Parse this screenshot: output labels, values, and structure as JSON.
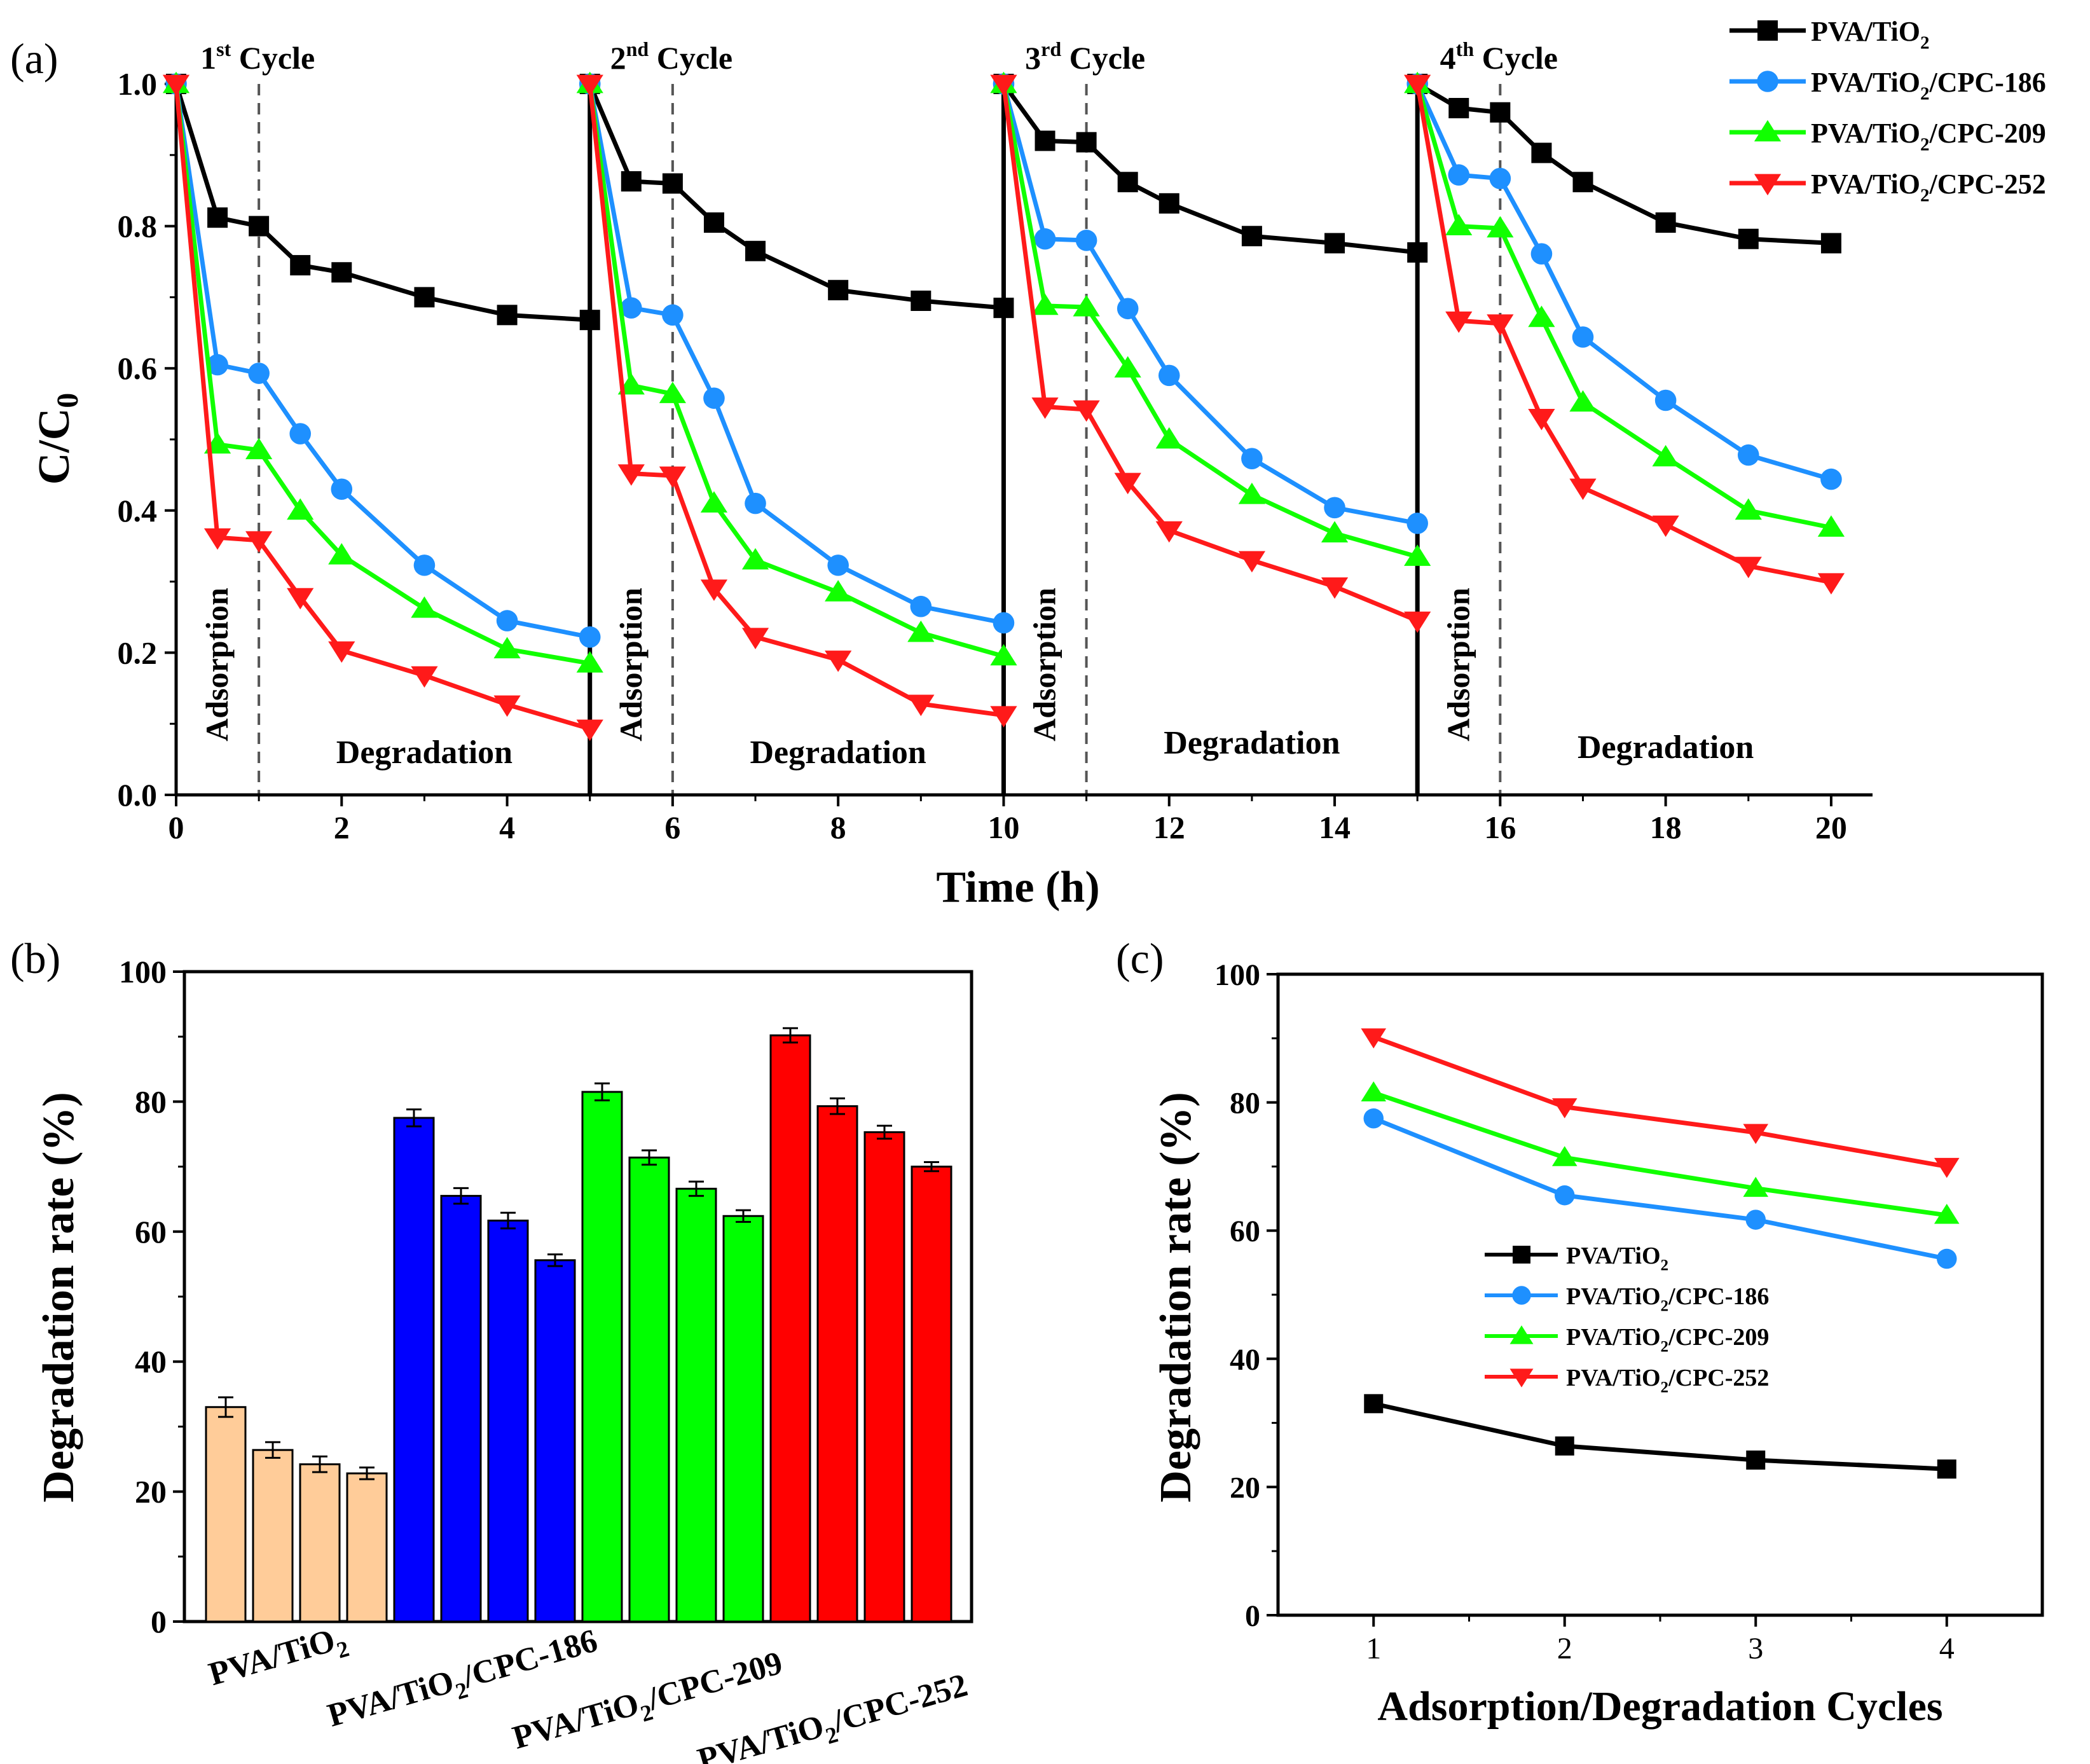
{
  "colors": {
    "black": "#000000",
    "blue": "#1E90FF",
    "green": "#11FF00",
    "red": "#FF1A1A",
    "bar_pva": "#FFCC99",
    "bar_186": "#0000FF",
    "bar_209": "#00FF00",
    "bar_252": "#FF0000",
    "dashed": "#555555"
  },
  "chart_data": [
    {
      "id": "a",
      "type": "line",
      "panel_label": "(a)",
      "xlabel": "Time (h)",
      "ylabel": "C/C",
      "ylabel_sub": "0",
      "xlim": [
        0,
        20.5
      ],
      "ylim": [
        0,
        1.0
      ],
      "xticks": [
        "0",
        "2",
        "4",
        "6",
        "8",
        "10",
        "12",
        "14",
        "16",
        "18",
        "20"
      ],
      "yticks": [
        "0.0",
        "0.2",
        "0.4",
        "0.6",
        "0.8",
        "1.0"
      ],
      "cycles": [
        {
          "pre": "1",
          "sup": "st",
          "post": " Cycle",
          "start": 0,
          "dash": 1
        },
        {
          "pre": "2",
          "sup": "nd",
          "post": " Cycle",
          "start": 5,
          "dash": 6
        },
        {
          "pre": "3",
          "sup": "rd",
          "post": " Cycle",
          "start": 10,
          "dash": 11
        },
        {
          "pre": "4",
          "sup": "th",
          "post": " Cycle",
          "start": 15,
          "dash": 16
        }
      ],
      "phase_labels": {
        "adsorption": "Adsorption",
        "degradation": "Degradation"
      },
      "legend": [
        {
          "base": "PVA/TiO",
          "sub": "2",
          "tail": ""
        },
        {
          "base": "PVA/TiO",
          "sub": "2",
          "tail": "/CPC-186"
        },
        {
          "base": "PVA/TiO",
          "sub": "2",
          "tail": "/CPC-209"
        },
        {
          "base": "PVA/TiO",
          "sub": "2",
          "tail": "/CPC-252"
        }
      ],
      "x": [
        [
          0,
          0.5,
          1,
          1.5,
          2,
          3,
          4,
          5
        ],
        [
          5,
          5.5,
          6,
          6.5,
          7,
          8,
          9,
          10
        ],
        [
          10,
          10.5,
          11,
          11.5,
          12,
          13,
          14,
          15
        ],
        [
          15,
          15.5,
          16,
          16.5,
          17,
          18,
          19,
          20
        ]
      ],
      "series": [
        {
          "name": "PVA/TiO2",
          "marker": "square",
          "color": "black",
          "values": [
            [
              1.0,
              0.812,
              0.8,
              0.745,
              0.735,
              0.7,
              0.675,
              0.668
            ],
            [
              1.0,
              0.863,
              0.86,
              0.805,
              0.765,
              0.71,
              0.695,
              0.685
            ],
            [
              1.0,
              0.92,
              0.918,
              0.862,
              0.832,
              0.786,
              0.776,
              0.763
            ],
            [
              1.0,
              0.966,
              0.96,
              0.903,
              0.862,
              0.805,
              0.782,
              0.776
            ]
          ]
        },
        {
          "name": "PVA/TiO2/CPC-186",
          "marker": "circle",
          "color": "blue",
          "values": [
            [
              1.0,
              0.605,
              0.593,
              0.508,
              0.43,
              0.323,
              0.245,
              0.222
            ],
            [
              1.0,
              0.685,
              0.675,
              0.558,
              0.41,
              0.323,
              0.265,
              0.242
            ],
            [
              1.0,
              0.782,
              0.78,
              0.684,
              0.59,
              0.473,
              0.404,
              0.382
            ],
            [
              1.0,
              0.872,
              0.867,
              0.761,
              0.644,
              0.555,
              0.478,
              0.444
            ]
          ]
        },
        {
          "name": "PVA/TiO2/CPC-209",
          "marker": "triangle-up",
          "color": "green",
          "values": [
            [
              1.0,
              0.493,
              0.485,
              0.4,
              0.337,
              0.262,
              0.205,
              0.185
            ],
            [
              1.0,
              0.576,
              0.564,
              0.41,
              0.33,
              0.285,
              0.228,
              0.195
            ],
            [
              1.0,
              0.688,
              0.686,
              0.6,
              0.5,
              0.422,
              0.368,
              0.335
            ],
            [
              1.0,
              0.8,
              0.797,
              0.671,
              0.552,
              0.475,
              0.4,
              0.376
            ]
          ]
        },
        {
          "name": "PVA/TiO2/CPC-252",
          "marker": "triangle-down",
          "color": "red",
          "values": [
            [
              1.0,
              0.362,
              0.358,
              0.278,
              0.203,
              0.168,
              0.127,
              0.093
            ],
            [
              1.0,
              0.452,
              0.449,
              0.29,
              0.222,
              0.19,
              0.128,
              0.112
            ],
            [
              1.0,
              0.546,
              0.542,
              0.44,
              0.372,
              0.33,
              0.293,
              0.245
            ],
            [
              1.0,
              0.667,
              0.663,
              0.53,
              0.432,
              0.38,
              0.322,
              0.299
            ]
          ]
        }
      ]
    },
    {
      "id": "b",
      "type": "bar",
      "panel_label": "(b)",
      "ylabel": "Degradation rate (%)",
      "ylim": [
        0,
        100
      ],
      "yticks": [
        "0",
        "20",
        "40",
        "60",
        "80",
        "100"
      ],
      "groups": [
        {
          "base": "PVA/TiO",
          "sub": "2",
          "tail": "",
          "color": "bar_pva",
          "values": [
            33.0,
            26.4,
            24.2,
            22.8
          ],
          "errors": [
            1.5,
            1.2,
            1.2,
            0.9
          ]
        },
        {
          "base": "PVA/TiO",
          "sub": "2",
          "tail": "/CPC-186",
          "color": "bar_186",
          "values": [
            77.5,
            65.5,
            61.7,
            55.6
          ],
          "errors": [
            1.3,
            1.2,
            1.2,
            0.9
          ]
        },
        {
          "base": "PVA/TiO",
          "sub": "2",
          "tail": "/CPC-209",
          "color": "bar_209",
          "values": [
            81.5,
            71.4,
            66.6,
            62.4
          ],
          "errors": [
            1.3,
            1.1,
            1.1,
            0.9
          ]
        },
        {
          "base": "PVA/TiO",
          "sub": "2",
          "tail": "/CPC-252",
          "color": "bar_252",
          "values": [
            90.2,
            79.3,
            75.3,
            70.0
          ],
          "errors": [
            1.1,
            1.2,
            1.0,
            0.7
          ]
        }
      ]
    },
    {
      "id": "c",
      "type": "line",
      "panel_label": "(c)",
      "xlabel": "Adsorption/Degradation Cycles",
      "ylabel": "Degradation rate (%)",
      "xlim": [
        0.5,
        4.5
      ],
      "ylim": [
        0,
        100
      ],
      "xticks": [
        "1",
        "2",
        "3",
        "4"
      ],
      "yticks": [
        "0",
        "20",
        "40",
        "60",
        "80",
        "100"
      ],
      "x": [
        1,
        2,
        3,
        4
      ],
      "legend": [
        {
          "base": "PVA/TiO",
          "sub": "2",
          "tail": ""
        },
        {
          "base": "PVA/TiO",
          "sub": "2",
          "tail": "/CPC-186"
        },
        {
          "base": "PVA/TiO",
          "sub": "2",
          "tail": "/CPC-209"
        },
        {
          "base": "PVA/TiO",
          "sub": "2",
          "tail": "/CPC-252"
        }
      ],
      "series": [
        {
          "name": "PVA/TiO2",
          "marker": "square",
          "color": "black",
          "values": [
            33.0,
            26.4,
            24.2,
            22.8
          ]
        },
        {
          "name": "PVA/TiO2/CPC-186",
          "marker": "circle",
          "color": "blue",
          "values": [
            77.5,
            65.5,
            61.7,
            55.6
          ]
        },
        {
          "name": "PVA/TiO2/CPC-209",
          "marker": "triangle-up",
          "color": "green",
          "values": [
            81.5,
            71.4,
            66.6,
            62.4
          ]
        },
        {
          "name": "PVA/TiO2/CPC-252",
          "marker": "triangle-down",
          "color": "red",
          "values": [
            90.2,
            79.3,
            75.3,
            70.0
          ]
        }
      ]
    }
  ]
}
